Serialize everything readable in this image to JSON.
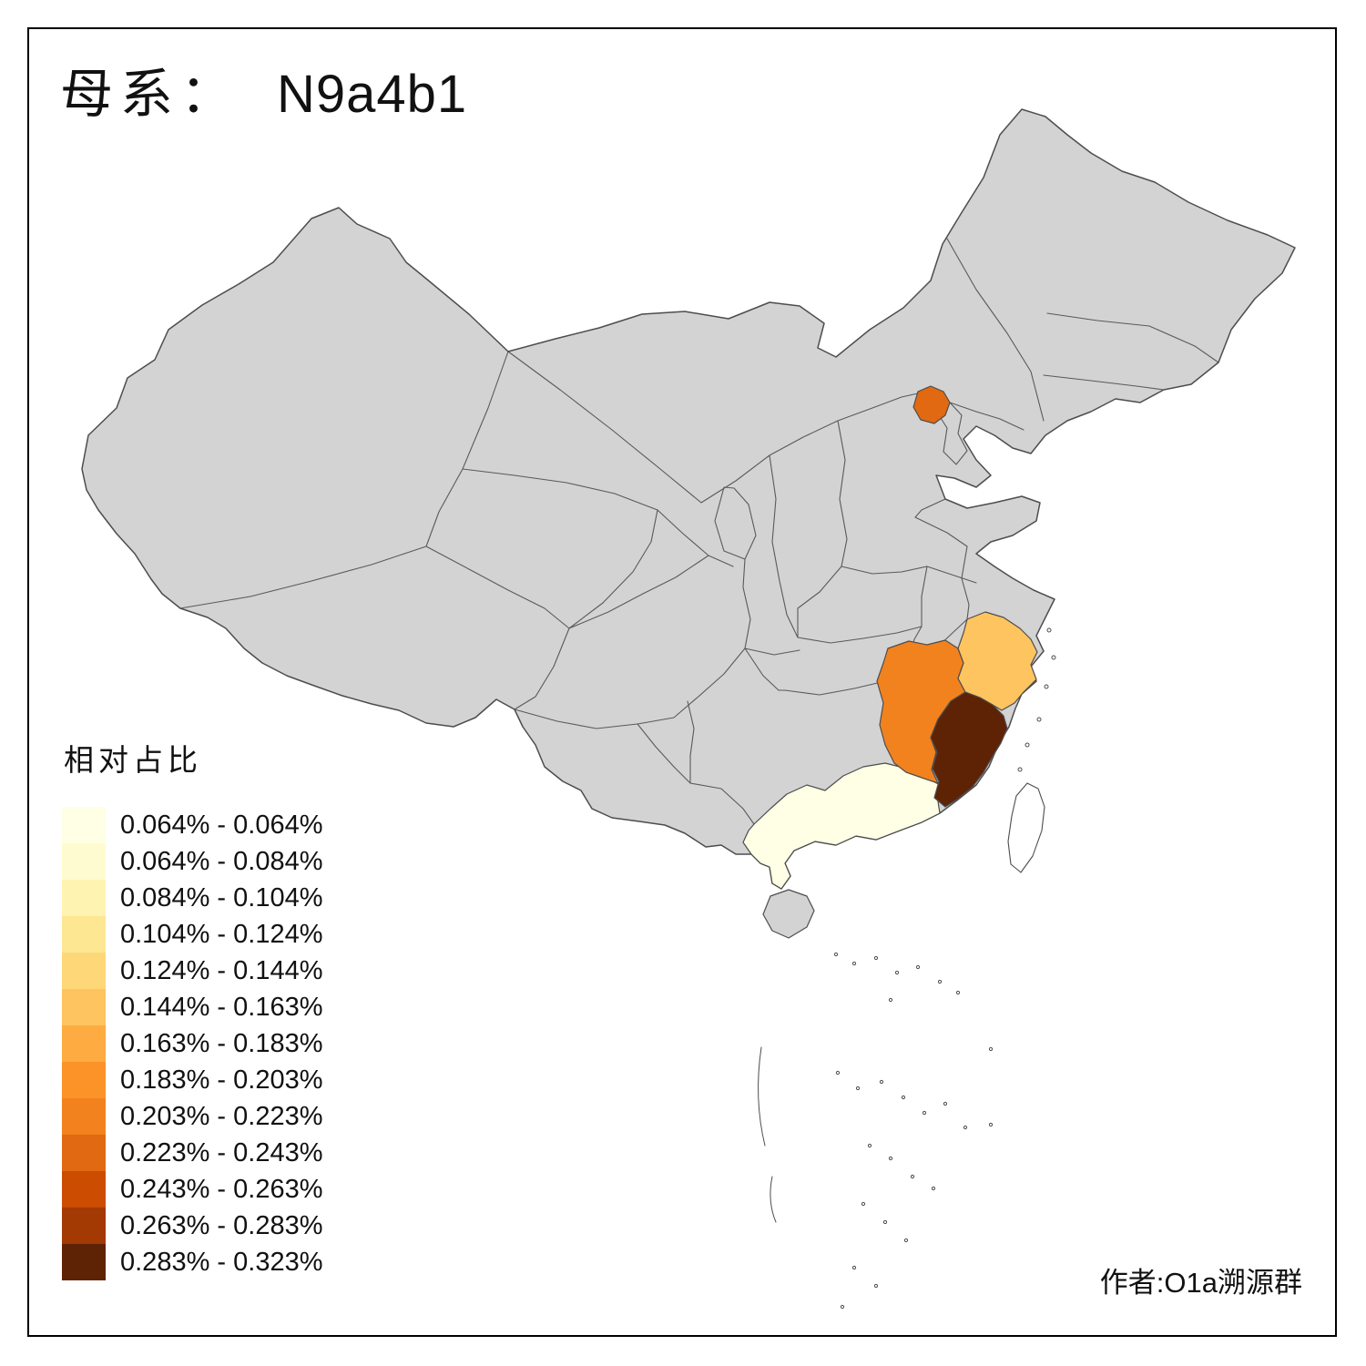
{
  "title": {
    "prefix": "母系：",
    "haplogroup": "N9a4b1"
  },
  "legend": {
    "title": "相对占比",
    "items": [
      {
        "label": "0.064% - 0.064%",
        "color": "#FFFFE5"
      },
      {
        "label": "0.064% - 0.084%",
        "color": "#FFFBD0"
      },
      {
        "label": "0.084% - 0.104%",
        "color": "#FFF3B2"
      },
      {
        "label": "0.104% - 0.124%",
        "color": "#FEE793"
      },
      {
        "label": "0.124% - 0.144%",
        "color": "#FED878"
      },
      {
        "label": "0.144% - 0.163%",
        "color": "#FEC45F"
      },
      {
        "label": "0.163% - 0.183%",
        "color": "#FEAC41"
      },
      {
        "label": "0.183% - 0.203%",
        "color": "#FB9329"
      },
      {
        "label": "0.203% - 0.223%",
        "color": "#F2821E"
      },
      {
        "label": "0.223% - 0.243%",
        "color": "#E16911"
      },
      {
        "label": "0.243% - 0.263%",
        "color": "#CC4C02"
      },
      {
        "label": "0.263% - 0.283%",
        "color": "#A33903"
      },
      {
        "label": "0.283% - 0.323%",
        "color": "#5E2205"
      }
    ]
  },
  "attribution": "作者:O1a溯源群",
  "map": {
    "default_fill": "#D3D3D3",
    "stroke": "#4D4D4D",
    "island_fill": "#FFFFFF",
    "provinces": [
      {
        "name": "beijing",
        "color": "#E16911",
        "legend_range": "0.223% - 0.243%"
      },
      {
        "name": "zhejiang",
        "color": "#FEC45F",
        "legend_range": "0.144% - 0.163%"
      },
      {
        "name": "jiangxi",
        "color": "#F2821E",
        "legend_range": "0.203% - 0.223%"
      },
      {
        "name": "fujian",
        "color": "#5E2205",
        "legend_range": "0.283% - 0.323%"
      },
      {
        "name": "guangdong",
        "color": "#FFFFE5",
        "legend_range": "0.064% - 0.064%"
      }
    ]
  }
}
